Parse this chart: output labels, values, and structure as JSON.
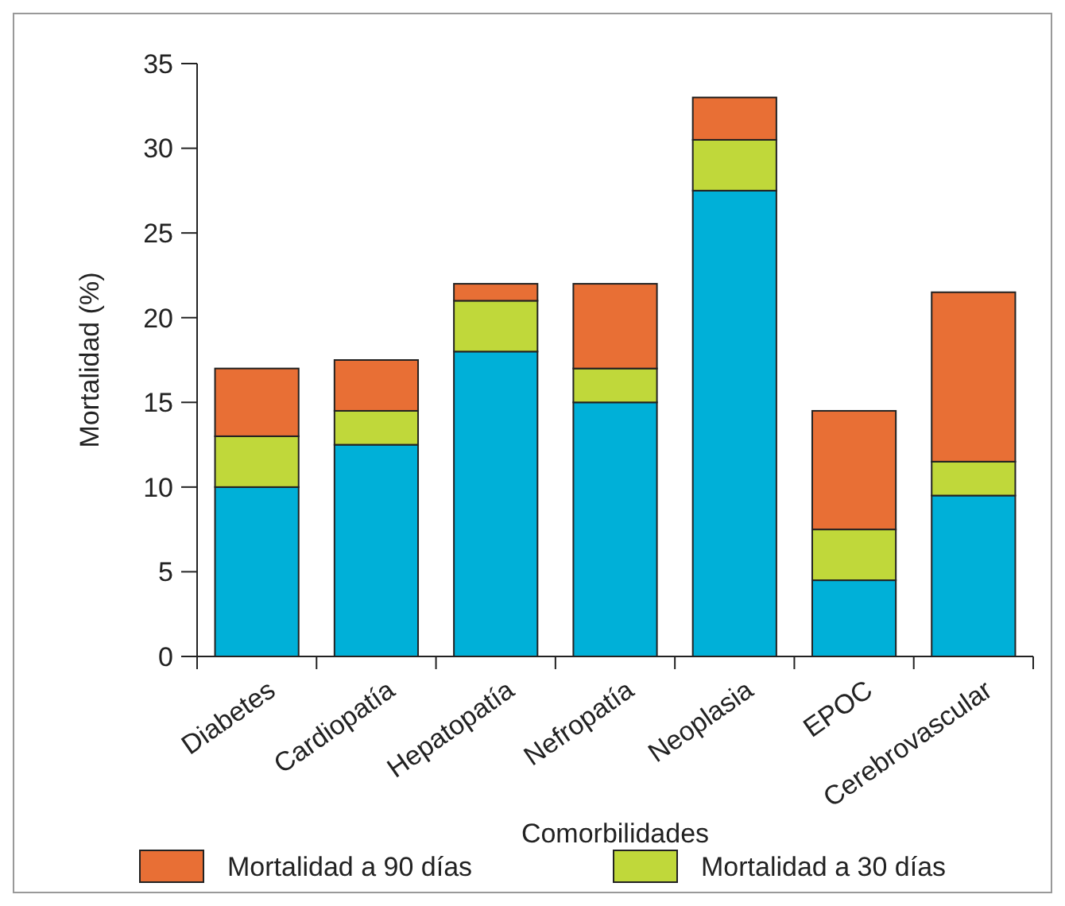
{
  "chart_data": {
    "type": "bar",
    "stacked": true,
    "xlabel": "Comorbilidades",
    "ylabel": "Mortalidad (%)",
    "categories": [
      "Diabetes",
      "Cardiopatía",
      "Hepatopatía",
      "Nefropatía",
      "Neoplasia",
      "EPOC",
      "Cerebrovascular"
    ],
    "series": [
      {
        "color": "#00b0d8",
        "values": [
          10,
          12.5,
          18,
          15,
          27.5,
          4.5,
          9.5
        ]
      },
      {
        "name": "Mortalidad a 30 días",
        "color": "#c0d83a",
        "values": [
          3,
          2,
          3,
          2,
          3,
          3,
          2
        ]
      },
      {
        "name": "Mortalidad a 90 días",
        "color": "#e86f35",
        "values": [
          4,
          3,
          1,
          5,
          2.5,
          7,
          10
        ]
      }
    ],
    "ylim": [
      0,
      35
    ],
    "yticks": [
      0,
      5,
      10,
      15,
      20,
      25,
      30,
      35
    ],
    "grid": false,
    "legend": "bottom"
  }
}
